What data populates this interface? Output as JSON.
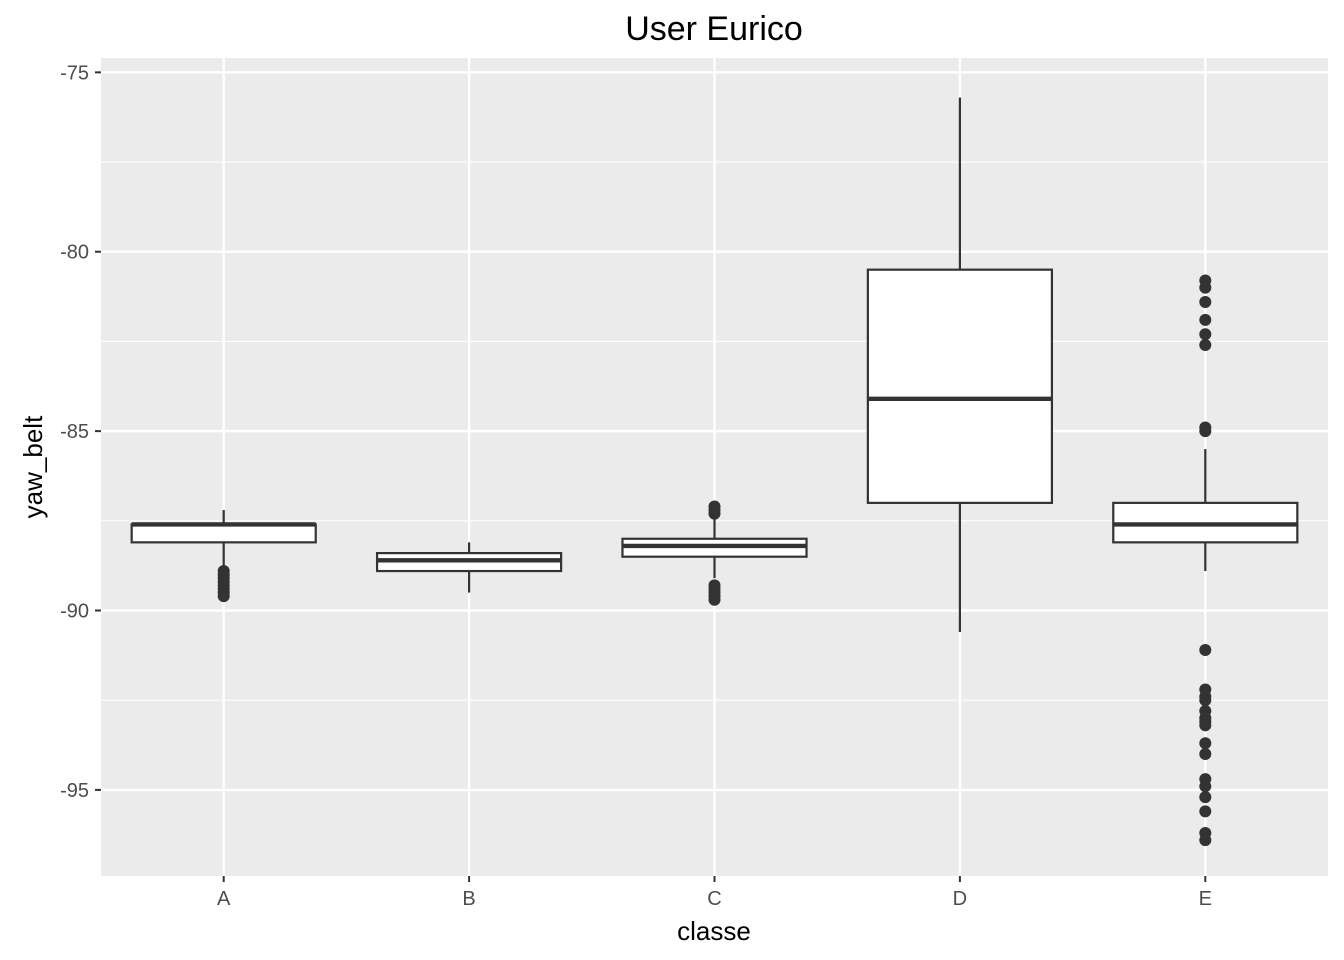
{
  "chart_data": {
    "type": "box",
    "title": "User Eurico",
    "xlabel": "classe",
    "ylabel": "yaw_belt",
    "categories": [
      "A",
      "B",
      "C",
      "D",
      "E"
    ],
    "ylim": [
      -97.4,
      -74.6
    ],
    "yticks": [
      -75,
      -80,
      -85,
      -90,
      -95
    ],
    "grid": true,
    "colors": {
      "panel": "#ebebeb",
      "grid_major": "#ffffff",
      "grid_minor": "#f6f6f6",
      "box_fill": "#ffffff",
      "box_stroke": "#333333",
      "outlier": "#333333",
      "tick_text": "#4d4d4d"
    },
    "boxes": [
      {
        "category": "A",
        "whisker_low": -88.9,
        "q1": -88.1,
        "median": -87.6,
        "q3": -87.6,
        "whisker_high": -87.2,
        "outliers": [
          -88.9,
          -89.0,
          -89.1,
          -89.2,
          -89.3,
          -89.4,
          -89.5,
          -89.6
        ]
      },
      {
        "category": "B",
        "whisker_low": -89.5,
        "q1": -88.9,
        "median": -88.6,
        "q3": -88.4,
        "whisker_high": -88.1,
        "outliers": []
      },
      {
        "category": "C",
        "whisker_low": -89.1,
        "q1": -88.5,
        "median": -88.2,
        "q3": -88.0,
        "whisker_high": -87.3,
        "outliers": [
          -87.1,
          -87.2,
          -87.3,
          -89.3,
          -89.4,
          -89.5,
          -89.6,
          -89.7
        ]
      },
      {
        "category": "D",
        "whisker_low": -90.6,
        "q1": -87.0,
        "median": -84.1,
        "q3": -80.5,
        "whisker_high": -75.7,
        "outliers": []
      },
      {
        "category": "E",
        "whisker_low": -88.9,
        "q1": -88.1,
        "median": -87.6,
        "q3": -87.0,
        "whisker_high": -85.5,
        "outliers": [
          -80.8,
          -81.0,
          -81.4,
          -81.9,
          -82.3,
          -82.6,
          -84.9,
          -85.0,
          -91.1,
          -92.2,
          -92.4,
          -92.5,
          -92.8,
          -93.0,
          -93.1,
          -93.2,
          -93.7,
          -94.0,
          -94.7,
          -94.9,
          -95.2,
          -95.6,
          -96.2,
          -96.4
        ]
      }
    ]
  }
}
